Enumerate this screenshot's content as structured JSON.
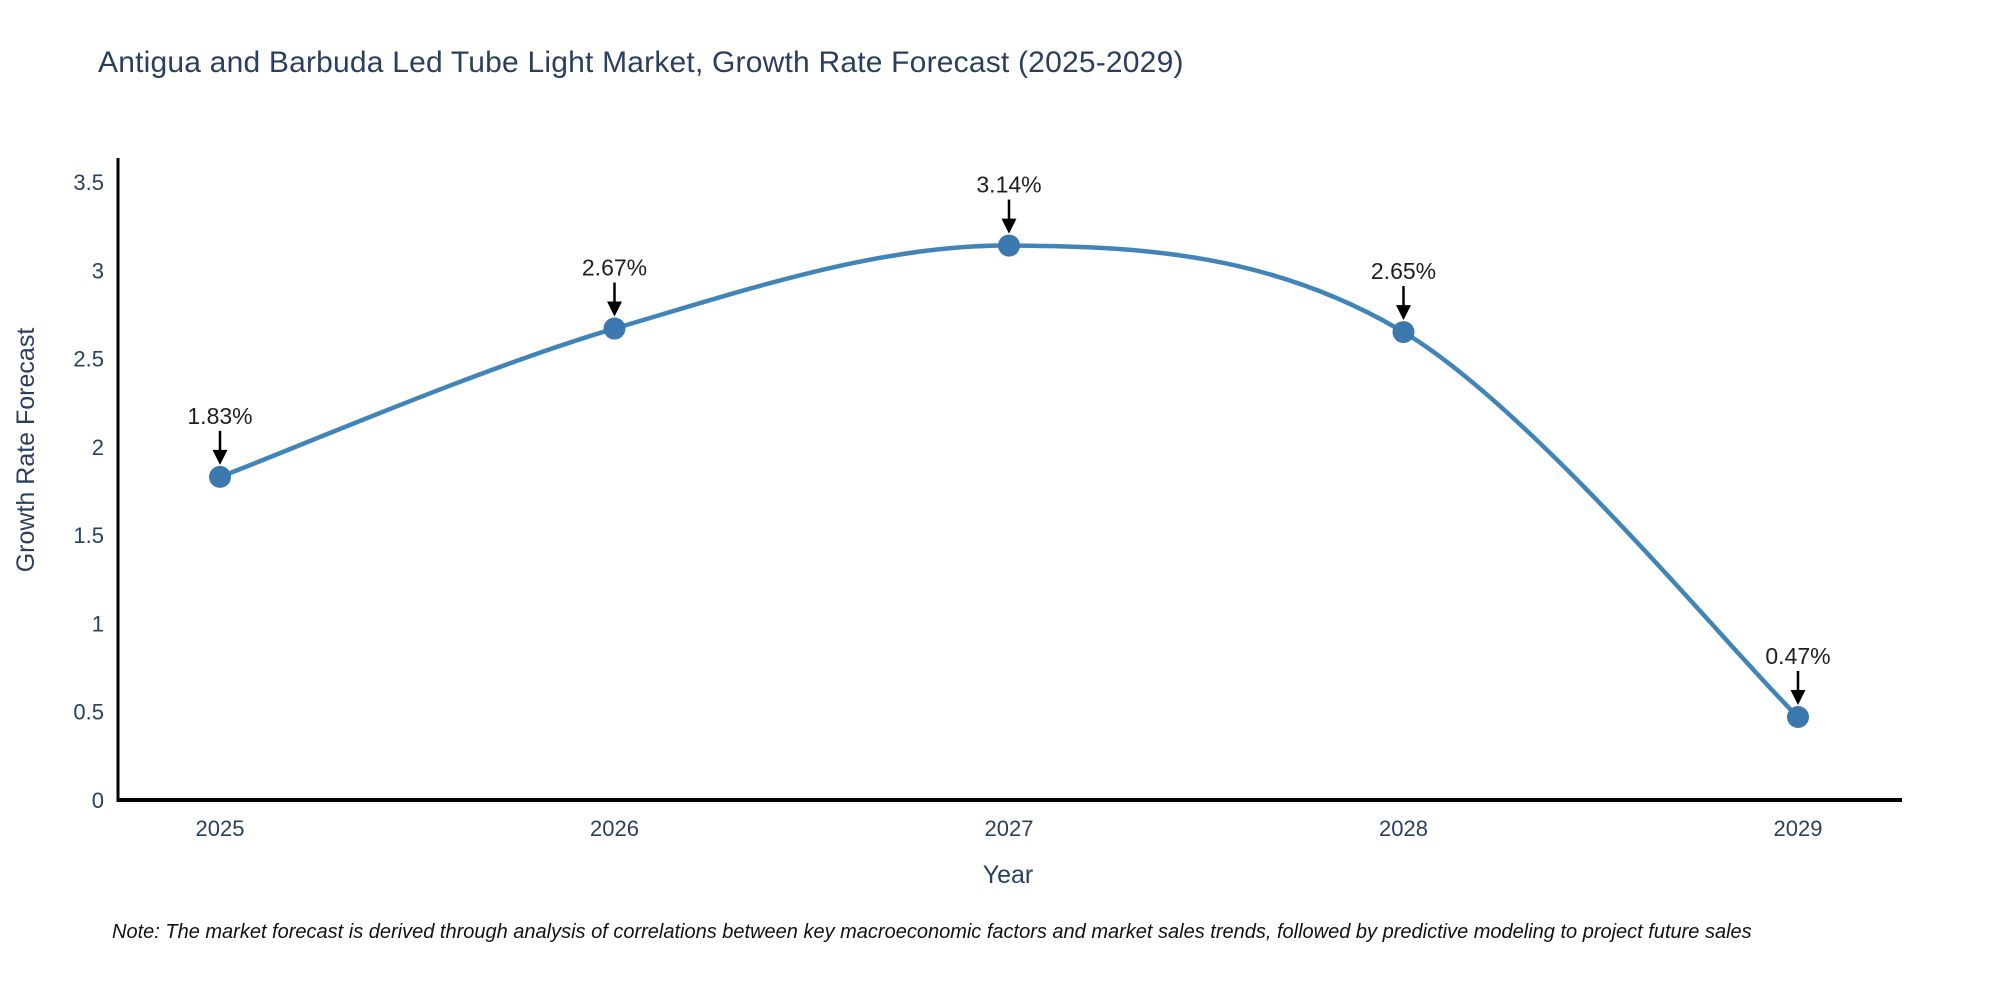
{
  "title": "Antigua and Barbuda Led Tube Light Market, Growth Rate Forecast (2025-2029)",
  "note": "Note: The market forecast is derived through analysis of correlations between key macroeconomic factors and market sales trends, followed by predictive modeling to project future sales",
  "chart_data": {
    "type": "line",
    "title": "Antigua and Barbuda Led Tube Light Market, Growth Rate Forecast (2025-2029)",
    "xlabel": "Year",
    "ylabel": "Growth Rate Forecast",
    "x": [
      "2025",
      "2026",
      "2027",
      "2028",
      "2029"
    ],
    "series": [
      {
        "name": "Growth Rate Forecast",
        "values": [
          1.83,
          2.67,
          3.14,
          2.65,
          0.47
        ],
        "point_labels": [
          "1.83%",
          "2.67%",
          "3.14%",
          "2.65%",
          "0.47%"
        ]
      }
    ],
    "ylim": [
      0,
      3.5
    ],
    "ytick_labels": [
      "0",
      "0.5",
      "1",
      "1.5",
      "2",
      "2.5",
      "3",
      "3.5"
    ],
    "grid": false,
    "legend_position": "none",
    "line_shape": "spline",
    "annotations": "value labels with black arrows pointing to each marker"
  },
  "colors": {
    "line": "#4185b8",
    "marker": "#3a78ae",
    "title_text": "#2a3f5f",
    "axis_line": "#000000",
    "tick_text": "#2a3f5f",
    "axis_title_text": "#2a3f5f",
    "annotation_text": "#1f1f1f",
    "arrow": "#000000",
    "note_text": "#111111",
    "background": "#ffffff"
  }
}
